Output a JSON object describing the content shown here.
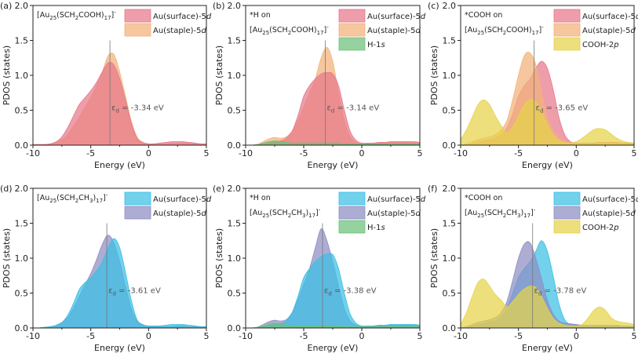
{
  "chart_data": [
    {
      "type": "area",
      "panel": "(a)",
      "annotation": [
        "[Au25(SCH2COOH)17]-"
      ],
      "xlabel": "Energy (eV)",
      "ylabel": "PDOS (states)",
      "xlim": [
        -10,
        5
      ],
      "ylim": [
        0,
        2.0
      ],
      "xticks": [
        -10,
        -5,
        0,
        5
      ],
      "yticks": [
        "0.0",
        "0.5",
        "1.0",
        "1.5",
        "2.0"
      ],
      "ed_value": -3.34,
      "ed_label": "= -3.34 eV",
      "legend": [
        "Au(surface)-5d",
        "Au(staple)-5d"
      ],
      "x": [
        -10,
        -9.5,
        -9,
        -8.5,
        -8,
        -7.5,
        -7,
        -6.5,
        -6,
        -5.5,
        -5,
        -4.5,
        -4,
        -3.5,
        -3,
        -2.5,
        -2,
        -1.5,
        -1,
        -0.5,
        0,
        0.5,
        1,
        1.5,
        2,
        2.5,
        3,
        3.5,
        4,
        4.5,
        5
      ],
      "series": [
        {
          "name": "Au(staple)-5d",
          "color": "#f3b27a",
          "values": [
            0.01,
            0.01,
            0.01,
            0.02,
            0.04,
            0.08,
            0.15,
            0.27,
            0.4,
            0.55,
            0.68,
            0.85,
            1.05,
            1.28,
            1.3,
            1.05,
            0.7,
            0.35,
            0.12,
            0.04,
            0.02,
            0.02,
            0.02,
            0.02,
            0.03,
            0.03,
            0.03,
            0.03,
            0.02,
            0.02,
            0.01
          ]
        },
        {
          "name": "Au(surface)-5d",
          "color": "#e8788a",
          "values": [
            0.01,
            0.01,
            0.01,
            0.02,
            0.05,
            0.12,
            0.25,
            0.42,
            0.58,
            0.68,
            0.78,
            0.9,
            1.05,
            1.18,
            1.15,
            0.95,
            0.65,
            0.32,
            0.1,
            0.04,
            0.02,
            0.02,
            0.03,
            0.04,
            0.05,
            0.05,
            0.05,
            0.04,
            0.03,
            0.02,
            0.02
          ]
        }
      ]
    },
    {
      "type": "area",
      "panel": "(b)",
      "annotation": [
        "*H on",
        "[Au25(SCH2COOH)17]-"
      ],
      "xlabel": "Energy (eV)",
      "ylabel": "PDOS (states)",
      "xlim": [
        -10,
        5
      ],
      "ylim": [
        0,
        2.0
      ],
      "xticks": [
        -10,
        -5,
        0,
        5
      ],
      "yticks": [
        "0.0",
        "0.5",
        "1.0",
        "1.5",
        "2.0"
      ],
      "ed_value": -3.14,
      "ed_label": "= -3.14 eV",
      "legend": [
        "Au(surface)-5d",
        "Au(staple)-5d",
        "H-1s"
      ],
      "x": [
        -10,
        -9.5,
        -9,
        -8.5,
        -8,
        -7.5,
        -7,
        -6.5,
        -6,
        -5.5,
        -5,
        -4.5,
        -4,
        -3.5,
        -3,
        -2.5,
        -2,
        -1.5,
        -1,
        -0.5,
        0,
        0.5,
        1,
        1.5,
        2,
        2.5,
        3,
        3.5,
        4,
        4.5,
        5
      ],
      "series": [
        {
          "name": "Au(staple)-5d",
          "color": "#f3b27a",
          "values": [
            0.0,
            0.0,
            0.01,
            0.05,
            0.09,
            0.11,
            0.1,
            0.12,
            0.2,
            0.35,
            0.55,
            0.75,
            0.95,
            1.25,
            1.4,
            1.2,
            0.75,
            0.35,
            0.12,
            0.04,
            0.02,
            0.02,
            0.02,
            0.03,
            0.03,
            0.04,
            0.04,
            0.04,
            0.04,
            0.04,
            0.03
          ]
        },
        {
          "name": "Au(surface)-5d",
          "color": "#e8788a",
          "values": [
            0.0,
            0.0,
            0.0,
            0.01,
            0.03,
            0.05,
            0.06,
            0.1,
            0.2,
            0.42,
            0.7,
            0.85,
            0.95,
            1.02,
            1.04,
            1.02,
            0.85,
            0.5,
            0.2,
            0.07,
            0.03,
            0.03,
            0.03,
            0.04,
            0.04,
            0.05,
            0.05,
            0.05,
            0.05,
            0.05,
            0.04
          ]
        },
        {
          "name": "H-1s",
          "color": "#6cc07a",
          "values": [
            0.0,
            0.0,
            0.01,
            0.03,
            0.05,
            0.06,
            0.05,
            0.04,
            0.03,
            0.03,
            0.03,
            0.03,
            0.03,
            0.03,
            0.03,
            0.03,
            0.03,
            0.02,
            0.02,
            0.02,
            0.02,
            0.02,
            0.02,
            0.02,
            0.02,
            0.02,
            0.02,
            0.02,
            0.02,
            0.02,
            0.02
          ]
        }
      ]
    },
    {
      "type": "area",
      "panel": "(c)",
      "annotation": [
        "*COOH on",
        "[Au25(SCH2COOH)17]-"
      ],
      "xlabel": "Energy (eV)",
      "ylabel": "PDOS (states)",
      "xlim": [
        -10,
        5
      ],
      "ylim": [
        0,
        2.0
      ],
      "xticks": [
        -10,
        -5,
        0,
        5
      ],
      "yticks": [
        "0.0",
        "0.5",
        "1.0",
        "1.5",
        "2.0"
      ],
      "ed_value": -3.65,
      "ed_label": "= -3.65 eV",
      "legend": [
        "Au(surface)-5d",
        "Au(staple)-5d",
        "COOH-2p"
      ],
      "x": [
        -10,
        -9.5,
        -9,
        -8.5,
        -8,
        -7.5,
        -7,
        -6.5,
        -6,
        -5.5,
        -5,
        -4.5,
        -4,
        -3.5,
        -3,
        -2.5,
        -2,
        -1.5,
        -1,
        -0.5,
        0,
        0.5,
        1,
        1.5,
        2,
        2.5,
        3,
        3.5,
        4,
        4.5,
        5
      ],
      "series": [
        {
          "name": "Au(surface)-5d",
          "color": "#e8788a",
          "values": [
            0.0,
            0.01,
            0.02,
            0.04,
            0.06,
            0.08,
            0.1,
            0.15,
            0.25,
            0.45,
            0.7,
            0.85,
            0.95,
            1.1,
            1.2,
            1.1,
            0.8,
            0.4,
            0.15,
            0.05,
            0.03,
            0.03,
            0.03,
            0.03,
            0.04,
            0.04,
            0.04,
            0.04,
            0.03,
            0.03,
            0.02
          ]
        },
        {
          "name": "Au(staple)-5d",
          "color": "#f3b27a",
          "values": [
            0.0,
            0.02,
            0.05,
            0.08,
            0.1,
            0.12,
            0.15,
            0.22,
            0.35,
            0.65,
            1.0,
            1.28,
            1.32,
            1.15,
            0.75,
            0.4,
            0.2,
            0.1,
            0.05,
            0.03,
            0.02,
            0.02,
            0.02,
            0.02,
            0.02,
            0.02,
            0.02,
            0.02,
            0.02,
            0.02,
            0.01
          ]
        },
        {
          "name": "COOH-2p",
          "color": "#e6d24a",
          "values": [
            0.08,
            0.22,
            0.4,
            0.58,
            0.65,
            0.58,
            0.42,
            0.28,
            0.18,
            0.26,
            0.42,
            0.58,
            0.65,
            0.62,
            0.48,
            0.3,
            0.15,
            0.07,
            0.04,
            0.03,
            0.05,
            0.1,
            0.16,
            0.22,
            0.24,
            0.22,
            0.16,
            0.1,
            0.06,
            0.04,
            0.03
          ]
        }
      ]
    },
    {
      "type": "area",
      "panel": "(d)",
      "annotation": [
        "[Au25(SCH2CH3)17]-"
      ],
      "xlabel": "Energy (eV)",
      "ylabel": "PDOS (states)",
      "xlim": [
        -10,
        5
      ],
      "ylim": [
        0,
        2.0
      ],
      "xticks": [
        -10,
        -5,
        0,
        5
      ],
      "yticks": [
        "0.0",
        "0.5",
        "1.0",
        "1.5",
        "2.0"
      ],
      "ed_value": -3.61,
      "ed_label": "= -3.61 eV",
      "legend": [
        "Au(surface)-5d",
        "Au(staple)-5d"
      ],
      "x": [
        -10,
        -9.5,
        -9,
        -8.5,
        -8,
        -7.5,
        -7,
        -6.5,
        -6,
        -5.5,
        -5,
        -4.5,
        -4,
        -3.5,
        -3,
        -2.5,
        -2,
        -1.5,
        -1,
        -0.5,
        0,
        0.5,
        1,
        1.5,
        2,
        2.5,
        3,
        3.5,
        4,
        4.5,
        5
      ],
      "series": [
        {
          "name": "Au(staple)-5d",
          "color": "#8e8ec4",
          "values": [
            0.0,
            0.0,
            0.01,
            0.02,
            0.04,
            0.08,
            0.15,
            0.28,
            0.45,
            0.62,
            0.78,
            0.98,
            1.2,
            1.33,
            1.22,
            0.95,
            0.6,
            0.28,
            0.1,
            0.04,
            0.02,
            0.02,
            0.02,
            0.02,
            0.02,
            0.03,
            0.03,
            0.02,
            0.02,
            0.02,
            0.01
          ]
        },
        {
          "name": "Au(surface)-5d",
          "color": "#3bbfe3",
          "values": [
            0.0,
            0.0,
            0.01,
            0.02,
            0.04,
            0.08,
            0.18,
            0.35,
            0.55,
            0.65,
            0.72,
            0.82,
            0.95,
            1.15,
            1.28,
            1.15,
            0.8,
            0.4,
            0.12,
            0.05,
            0.03,
            0.03,
            0.03,
            0.04,
            0.05,
            0.05,
            0.05,
            0.04,
            0.03,
            0.02,
            0.02
          ]
        }
      ]
    },
    {
      "type": "area",
      "panel": "(e)",
      "annotation": [
        "*H on",
        "[Au25(SCH2CH3)17]-"
      ],
      "xlabel": "Energy (eV)",
      "ylabel": "PDOS (states)",
      "xlim": [
        -10,
        5
      ],
      "ylim": [
        0,
        2.0
      ],
      "xticks": [
        -10,
        -5,
        0,
        5
      ],
      "yticks": [
        "0.0",
        "0.5",
        "1.0",
        "1.5",
        "2.0"
      ],
      "ed_value": -3.38,
      "ed_label": "= -3.38 eV",
      "legend": [
        "Au(surface)-5d",
        "Au(staple)-5d",
        "H-1s"
      ],
      "x": [
        -10,
        -9.5,
        -9,
        -8.5,
        -8,
        -7.5,
        -7,
        -6.5,
        -6,
        -5.5,
        -5,
        -4.5,
        -4,
        -3.5,
        -3,
        -2.5,
        -2,
        -1.5,
        -1,
        -0.5,
        0,
        0.5,
        1,
        1.5,
        2,
        2.5,
        3,
        3.5,
        4,
        4.5,
        5
      ],
      "series": [
        {
          "name": "Au(staple)-5d",
          "color": "#8e8ec4",
          "values": [
            0.0,
            0.0,
            0.01,
            0.05,
            0.09,
            0.11,
            0.1,
            0.12,
            0.22,
            0.4,
            0.62,
            0.85,
            1.15,
            1.42,
            1.25,
            0.95,
            0.6,
            0.28,
            0.1,
            0.04,
            0.02,
            0.02,
            0.02,
            0.03,
            0.03,
            0.04,
            0.04,
            0.04,
            0.04,
            0.04,
            0.03
          ]
        },
        {
          "name": "Au(surface)-5d",
          "color": "#3bbfe3",
          "values": [
            0.0,
            0.0,
            0.0,
            0.01,
            0.03,
            0.05,
            0.06,
            0.1,
            0.22,
            0.45,
            0.72,
            0.85,
            0.95,
            1.02,
            1.06,
            1.05,
            0.85,
            0.5,
            0.2,
            0.07,
            0.03,
            0.03,
            0.03,
            0.04,
            0.04,
            0.05,
            0.05,
            0.05,
            0.05,
            0.05,
            0.04
          ]
        },
        {
          "name": "H-1s",
          "color": "#6cc07a",
          "values": [
            0.0,
            0.0,
            0.01,
            0.03,
            0.05,
            0.07,
            0.06,
            0.04,
            0.03,
            0.03,
            0.03,
            0.03,
            0.03,
            0.03,
            0.03,
            0.03,
            0.03,
            0.02,
            0.02,
            0.02,
            0.02,
            0.02,
            0.02,
            0.02,
            0.02,
            0.02,
            0.02,
            0.02,
            0.02,
            0.02,
            0.02
          ]
        }
      ]
    },
    {
      "type": "area",
      "panel": "(f)",
      "annotation": [
        "*COOH on",
        "[Au25(SCH2CH3)17]-"
      ],
      "xlabel": "Energy (eV)",
      "ylabel": "PDOS (states)",
      "xlim": [
        -10,
        5
      ],
      "ylim": [
        0,
        2.0
      ],
      "xticks": [
        -10,
        -5,
        0,
        5
      ],
      "yticks": [
        "0.0",
        "0.5",
        "1.0",
        "1.5",
        "2.0"
      ],
      "ed_value": -3.78,
      "ed_label": "= -3.78 eV",
      "legend": [
        "Au(surface)-5d",
        "Au(staple)-5d",
        "COOH-2p"
      ],
      "x": [
        -10,
        -9.5,
        -9,
        -8.5,
        -8,
        -7.5,
        -7,
        -6.5,
        -6,
        -5.5,
        -5,
        -4.5,
        -4,
        -3.5,
        -3,
        -2.5,
        -2,
        -1.5,
        -1,
        -0.5,
        0,
        0.5,
        1,
        1.5,
        2,
        2.5,
        3,
        3.5,
        4,
        4.5,
        5
      ],
      "series": [
        {
          "name": "Au(surface)-5d",
          "color": "#3bbfe3",
          "values": [
            0.0,
            0.01,
            0.02,
            0.04,
            0.06,
            0.08,
            0.1,
            0.15,
            0.28,
            0.5,
            0.72,
            0.85,
            0.95,
            1.1,
            1.25,
            1.1,
            0.75,
            0.35,
            0.12,
            0.05,
            0.04,
            0.04,
            0.04,
            0.04,
            0.04,
            0.04,
            0.04,
            0.04,
            0.03,
            0.03,
            0.02
          ]
        },
        {
          "name": "Au(staple)-5d",
          "color": "#8e8ec4",
          "values": [
            0.0,
            0.02,
            0.05,
            0.08,
            0.1,
            0.12,
            0.15,
            0.22,
            0.38,
            0.68,
            1.0,
            1.2,
            1.22,
            1.0,
            0.7,
            0.4,
            0.2,
            0.1,
            0.07,
            0.06,
            0.05,
            0.04,
            0.04,
            0.03,
            0.03,
            0.03,
            0.03,
            0.03,
            0.02,
            0.02,
            0.02
          ]
        },
        {
          "name": "COOH-2p",
          "color": "#e6d24a",
          "values": [
            0.05,
            0.22,
            0.45,
            0.65,
            0.7,
            0.6,
            0.48,
            0.4,
            0.3,
            0.38,
            0.48,
            0.56,
            0.6,
            0.58,
            0.45,
            0.28,
            0.14,
            0.07,
            0.04,
            0.03,
            0.03,
            0.05,
            0.14,
            0.25,
            0.3,
            0.26,
            0.15,
            0.1,
            0.08,
            0.07,
            0.05
          ]
        }
      ]
    }
  ]
}
